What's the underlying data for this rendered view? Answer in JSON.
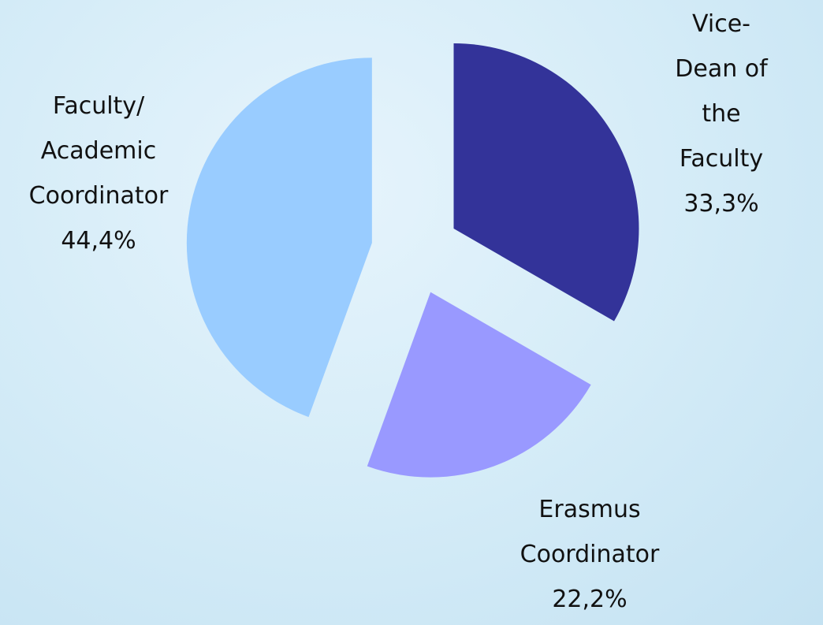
{
  "chart_data": {
    "type": "pie",
    "categories": [
      "Vice-Dean of\nthe Faculty",
      "Erasmus\nCoordinator",
      "Faculty/\nAcademic\nCoordinator"
    ],
    "values": [
      33.3,
      22.2,
      44.4
    ],
    "value_labels": [
      "33,3%",
      "22,2%",
      "44,4%"
    ],
    "colors": [
      "#333399",
      "#9999ff",
      "#99ccff"
    ]
  }
}
